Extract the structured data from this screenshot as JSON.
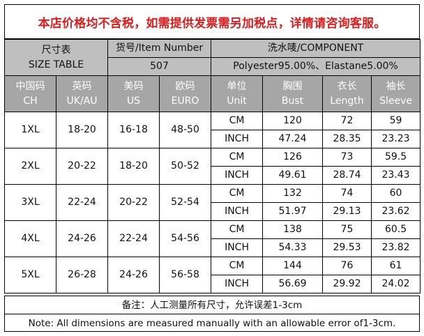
{
  "notice": "本店价格均不含税，如需提供发票需另加税点，详情请咨询客服。",
  "header": {
    "size_table_cn": "尺寸表",
    "size_table_en": "SIZE TABLE",
    "item_number_label": "货号/Item Number",
    "item_number_value": "507",
    "component_label": "洗水唛/COMPONENT",
    "component_value": "Polyester95.00%、Elastane5.00%"
  },
  "columns": [
    {
      "cn": "中国码",
      "en": "CH"
    },
    {
      "cn": "英码",
      "en": "UK/AU"
    },
    {
      "cn": "美码",
      "en": "US"
    },
    {
      "cn": "欧码",
      "en": "EURO"
    },
    {
      "cn": "单位",
      "en": "Unit"
    },
    {
      "cn": "胸围",
      "en": "Bust"
    },
    {
      "cn": "衣长",
      "en": "Length"
    },
    {
      "cn": "袖长",
      "en": "Sleeve"
    }
  ],
  "rows": [
    {
      "ch": "1XL",
      "uk": "18-20",
      "us": "16-18",
      "euro": "48-50",
      "cm": {
        "unit": "CM",
        "bust": "120",
        "length": "72",
        "sleeve": "59"
      },
      "inch": {
        "unit": "INCH",
        "bust": "47.24",
        "length": "28.35",
        "sleeve": "23.23"
      }
    },
    {
      "ch": "2XL",
      "uk": "20-22",
      "us": "18-20",
      "euro": "50-52",
      "cm": {
        "unit": "CM",
        "bust": "126",
        "length": "73",
        "sleeve": "59.5"
      },
      "inch": {
        "unit": "INCH",
        "bust": "49.61",
        "length": "28.74",
        "sleeve": "23.43"
      }
    },
    {
      "ch": "3XL",
      "uk": "22-24",
      "us": "20-22",
      "euro": "52-54",
      "cm": {
        "unit": "CM",
        "bust": "132",
        "length": "74",
        "sleeve": "60"
      },
      "inch": {
        "unit": "INCH",
        "bust": "51.97",
        "length": "29.13",
        "sleeve": "23.62"
      }
    },
    {
      "ch": "4XL",
      "uk": "24-26",
      "us": "22-24",
      "euro": "54-56",
      "cm": {
        "unit": "CM",
        "bust": "138",
        "length": "75",
        "sleeve": "60.5"
      },
      "inch": {
        "unit": "INCH",
        "bust": "54.33",
        "length": "29.53",
        "sleeve": "23.82"
      }
    },
    {
      "ch": "5XL",
      "uk": "26-28",
      "us": "24-26",
      "euro": "56-58",
      "cm": {
        "unit": "CM",
        "bust": "144",
        "length": "76",
        "sleeve": "61"
      },
      "inch": {
        "unit": "INCH",
        "bust": "56.69",
        "length": "29.92",
        "sleeve": "24.02"
      }
    }
  ],
  "notes": {
    "cn": "备注：人工测量所有尺寸，允许误差1-3cm",
    "en": "Note: All dimensions are measured manually with an allowable error of1-3cm."
  }
}
